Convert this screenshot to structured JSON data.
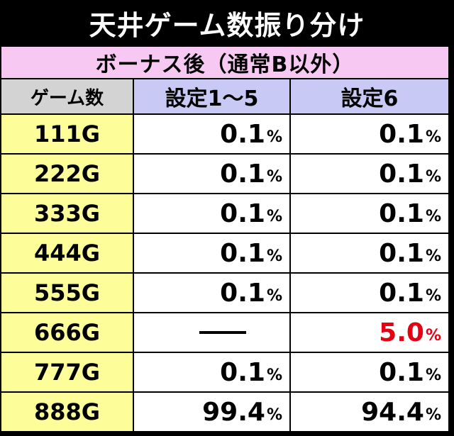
{
  "title": "天井ゲーム数振り分け",
  "subheader": "ボーナス後（通常B以外）",
  "columns": {
    "game": "ゲーム数",
    "setting_1_5": "設定1～5",
    "setting_6": "設定6"
  },
  "rows": [
    {
      "game": "111G",
      "s15": "0.1",
      "s6": "0.1"
    },
    {
      "game": "222G",
      "s15": "0.1",
      "s6": "0.1"
    },
    {
      "game": "333G",
      "s15": "0.1",
      "s6": "0.1"
    },
    {
      "game": "444G",
      "s15": "0.1",
      "s6": "0.1"
    },
    {
      "game": "555G",
      "s15": "0.1",
      "s6": "0.1"
    },
    {
      "game": "666G",
      "s15": "—",
      "s6": "5.0"
    },
    {
      "game": "777G",
      "s15": "0.1",
      "s6": "0.1"
    },
    {
      "game": "888G",
      "s15": "99.4",
      "s6": "94.4"
    }
  ],
  "unit": "%",
  "colors": {
    "subheader_bg": "#f7c8f2",
    "game_header_bg": "#d3d3d3",
    "setting_header_bg": "#c9c9f5",
    "row_label_bg": "#fdfd9a",
    "highlight_text": "#e60012"
  }
}
